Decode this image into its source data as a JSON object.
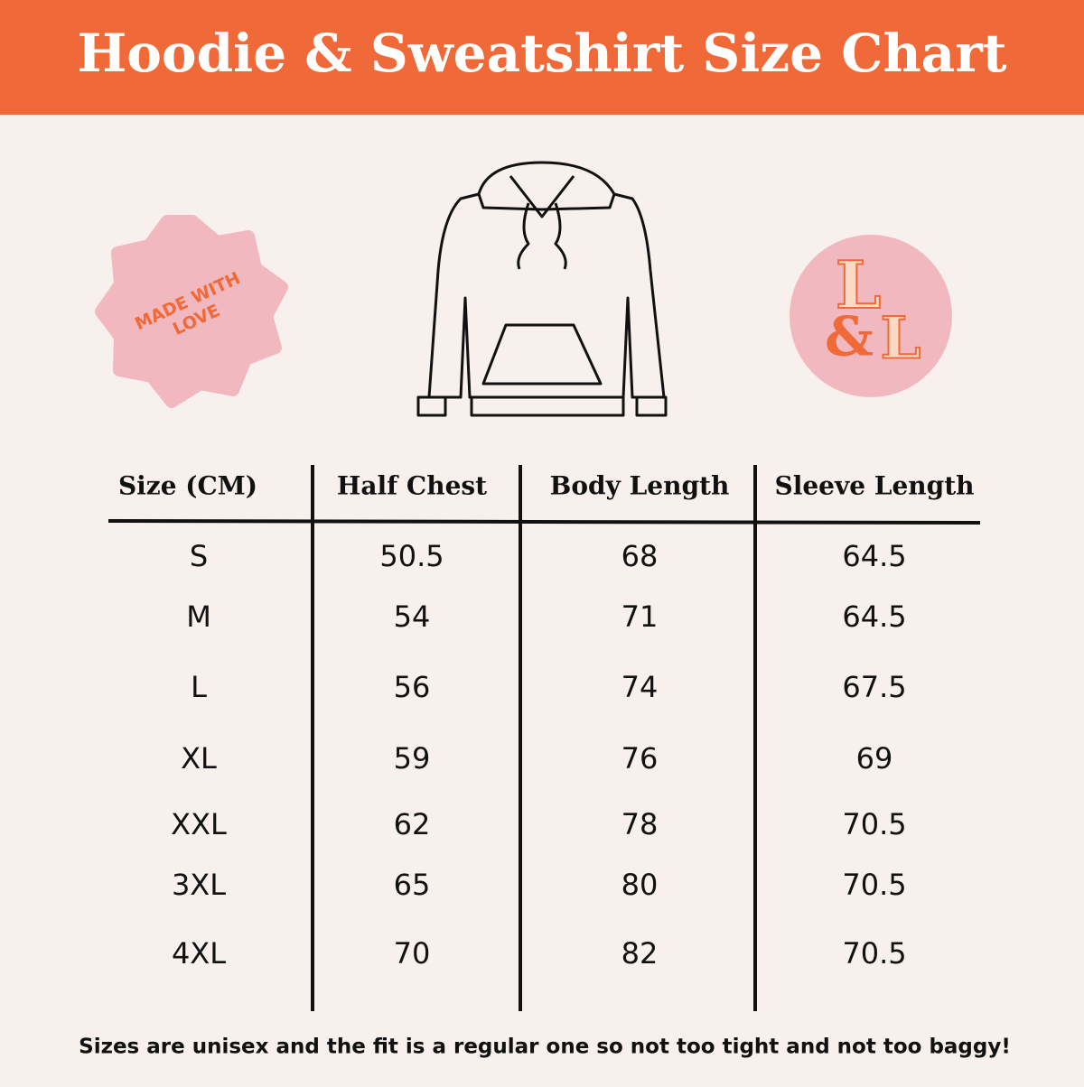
{
  "header": {
    "title": "Hoodie & Sweatshirt Size Chart"
  },
  "badge": {
    "lines": [
      "MADE WITH",
      "LOVE"
    ]
  },
  "logo": {
    "top": "L",
    "amp": "&",
    "bottom": "L"
  },
  "table": {
    "columns": [
      "Size (CM)",
      "Half Chest",
      "Body Length",
      "Sleeve Length"
    ],
    "rows": [
      [
        "S",
        50.5,
        68,
        64.5
      ],
      [
        "M",
        54,
        71,
        64.5
      ],
      [
        "L",
        56,
        74,
        67.5
      ],
      [
        "XL",
        59,
        76,
        69
      ],
      [
        "XXL",
        62,
        78,
        70.5
      ],
      [
        "3XL",
        65,
        80,
        70.5
      ],
      [
        "4XL",
        70,
        82,
        70.5
      ]
    ]
  },
  "footer": {
    "note": "Sizes are unisex and the fit is a regular one so not too tight and not too baggy!"
  }
}
